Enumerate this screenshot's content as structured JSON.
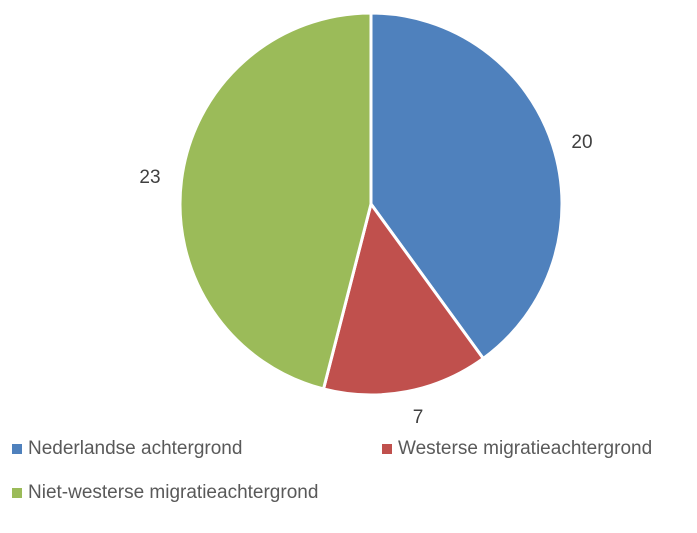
{
  "chart_data": {
    "type": "pie",
    "title": "",
    "categories": [
      "Nederlandse achtergrond",
      "Westerse migratieachtergrond",
      "Niet-westerse migratieachtergrond"
    ],
    "values": [
      20,
      7,
      23
    ],
    "data_labels": [
      "20",
      "7",
      "23"
    ],
    "colors": [
      "#4F81BD",
      "#C0504D",
      "#9BBB59"
    ],
    "start_angle": "12 o'clock",
    "direction": "clockwise",
    "legend_position": "bottom"
  }
}
